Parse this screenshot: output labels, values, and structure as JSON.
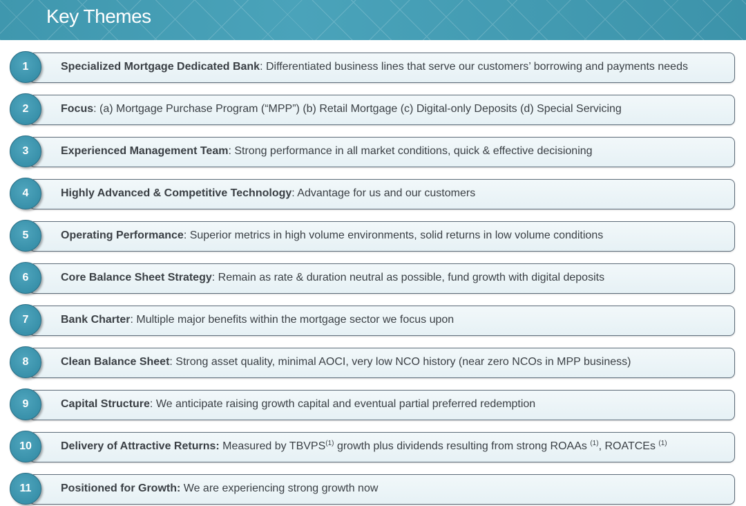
{
  "header": {
    "title": "Key Themes",
    "accent": "#3f97ae"
  },
  "items": [
    {
      "num": "1",
      "label": "Specialized Mortgage Dedicated Bank",
      "parts": [
        {
          "t": ": Differentiated business lines that serve our customers’ borrowing and payments needs"
        }
      ]
    },
    {
      "num": "2",
      "label": "Focus",
      "parts": [
        {
          "t": ": (a) Mortgage Purchase Program (“MPP”)  (b) Retail Mortgage (c) Digital-only Deposits (d) Special Servicing"
        }
      ]
    },
    {
      "num": "3",
      "label": "Experienced Management Team",
      "parts": [
        {
          "t": ": Strong performance in all market conditions, quick & effective decisioning"
        }
      ]
    },
    {
      "num": "4",
      "label": "Highly Advanced & Competitive Technology",
      "parts": [
        {
          "t": ": Advantage for us and our customers"
        }
      ]
    },
    {
      "num": "5",
      "label": " Operating Performance",
      "parts": [
        {
          "t": ": Superior metrics in high volume environments, solid returns in low volume conditions"
        }
      ]
    },
    {
      "num": "6",
      "label": "Core Balance Sheet Strategy",
      "parts": [
        {
          "t": ": Remain as rate & duration neutral as possible, fund growth with digital deposits"
        }
      ]
    },
    {
      "num": "7",
      "label": "Bank Charter",
      "parts": [
        {
          "t": ": Multiple major benefits within the mortgage sector we focus upon"
        }
      ]
    },
    {
      "num": "8",
      "label": "Clean Balance Sheet",
      "parts": [
        {
          "t": ": Strong asset quality, minimal AOCI, very low NCO history (near zero NCOs in MPP business)"
        }
      ]
    },
    {
      "num": "9",
      "label": "Capital Structure",
      "parts": [
        {
          "t": ": We anticipate raising growth capital and eventual partial preferred redemption"
        }
      ]
    },
    {
      "num": "10",
      "label": "Delivery of Attractive Returns:",
      "parts": [
        {
          "t": " Measured by TBVPS"
        },
        {
          "t": "(1)",
          "sup": true
        },
        {
          "t": " growth plus dividends resulting from strong ROAAs "
        },
        {
          "t": "(1)",
          "sup": true
        },
        {
          "t": ", ROATCEs "
        },
        {
          "t": "(1)",
          "sup": true
        }
      ]
    },
    {
      "num": "11",
      "label": "Positioned for Growth:",
      "parts": [
        {
          "t": " We are experiencing strong growth now"
        }
      ]
    }
  ]
}
